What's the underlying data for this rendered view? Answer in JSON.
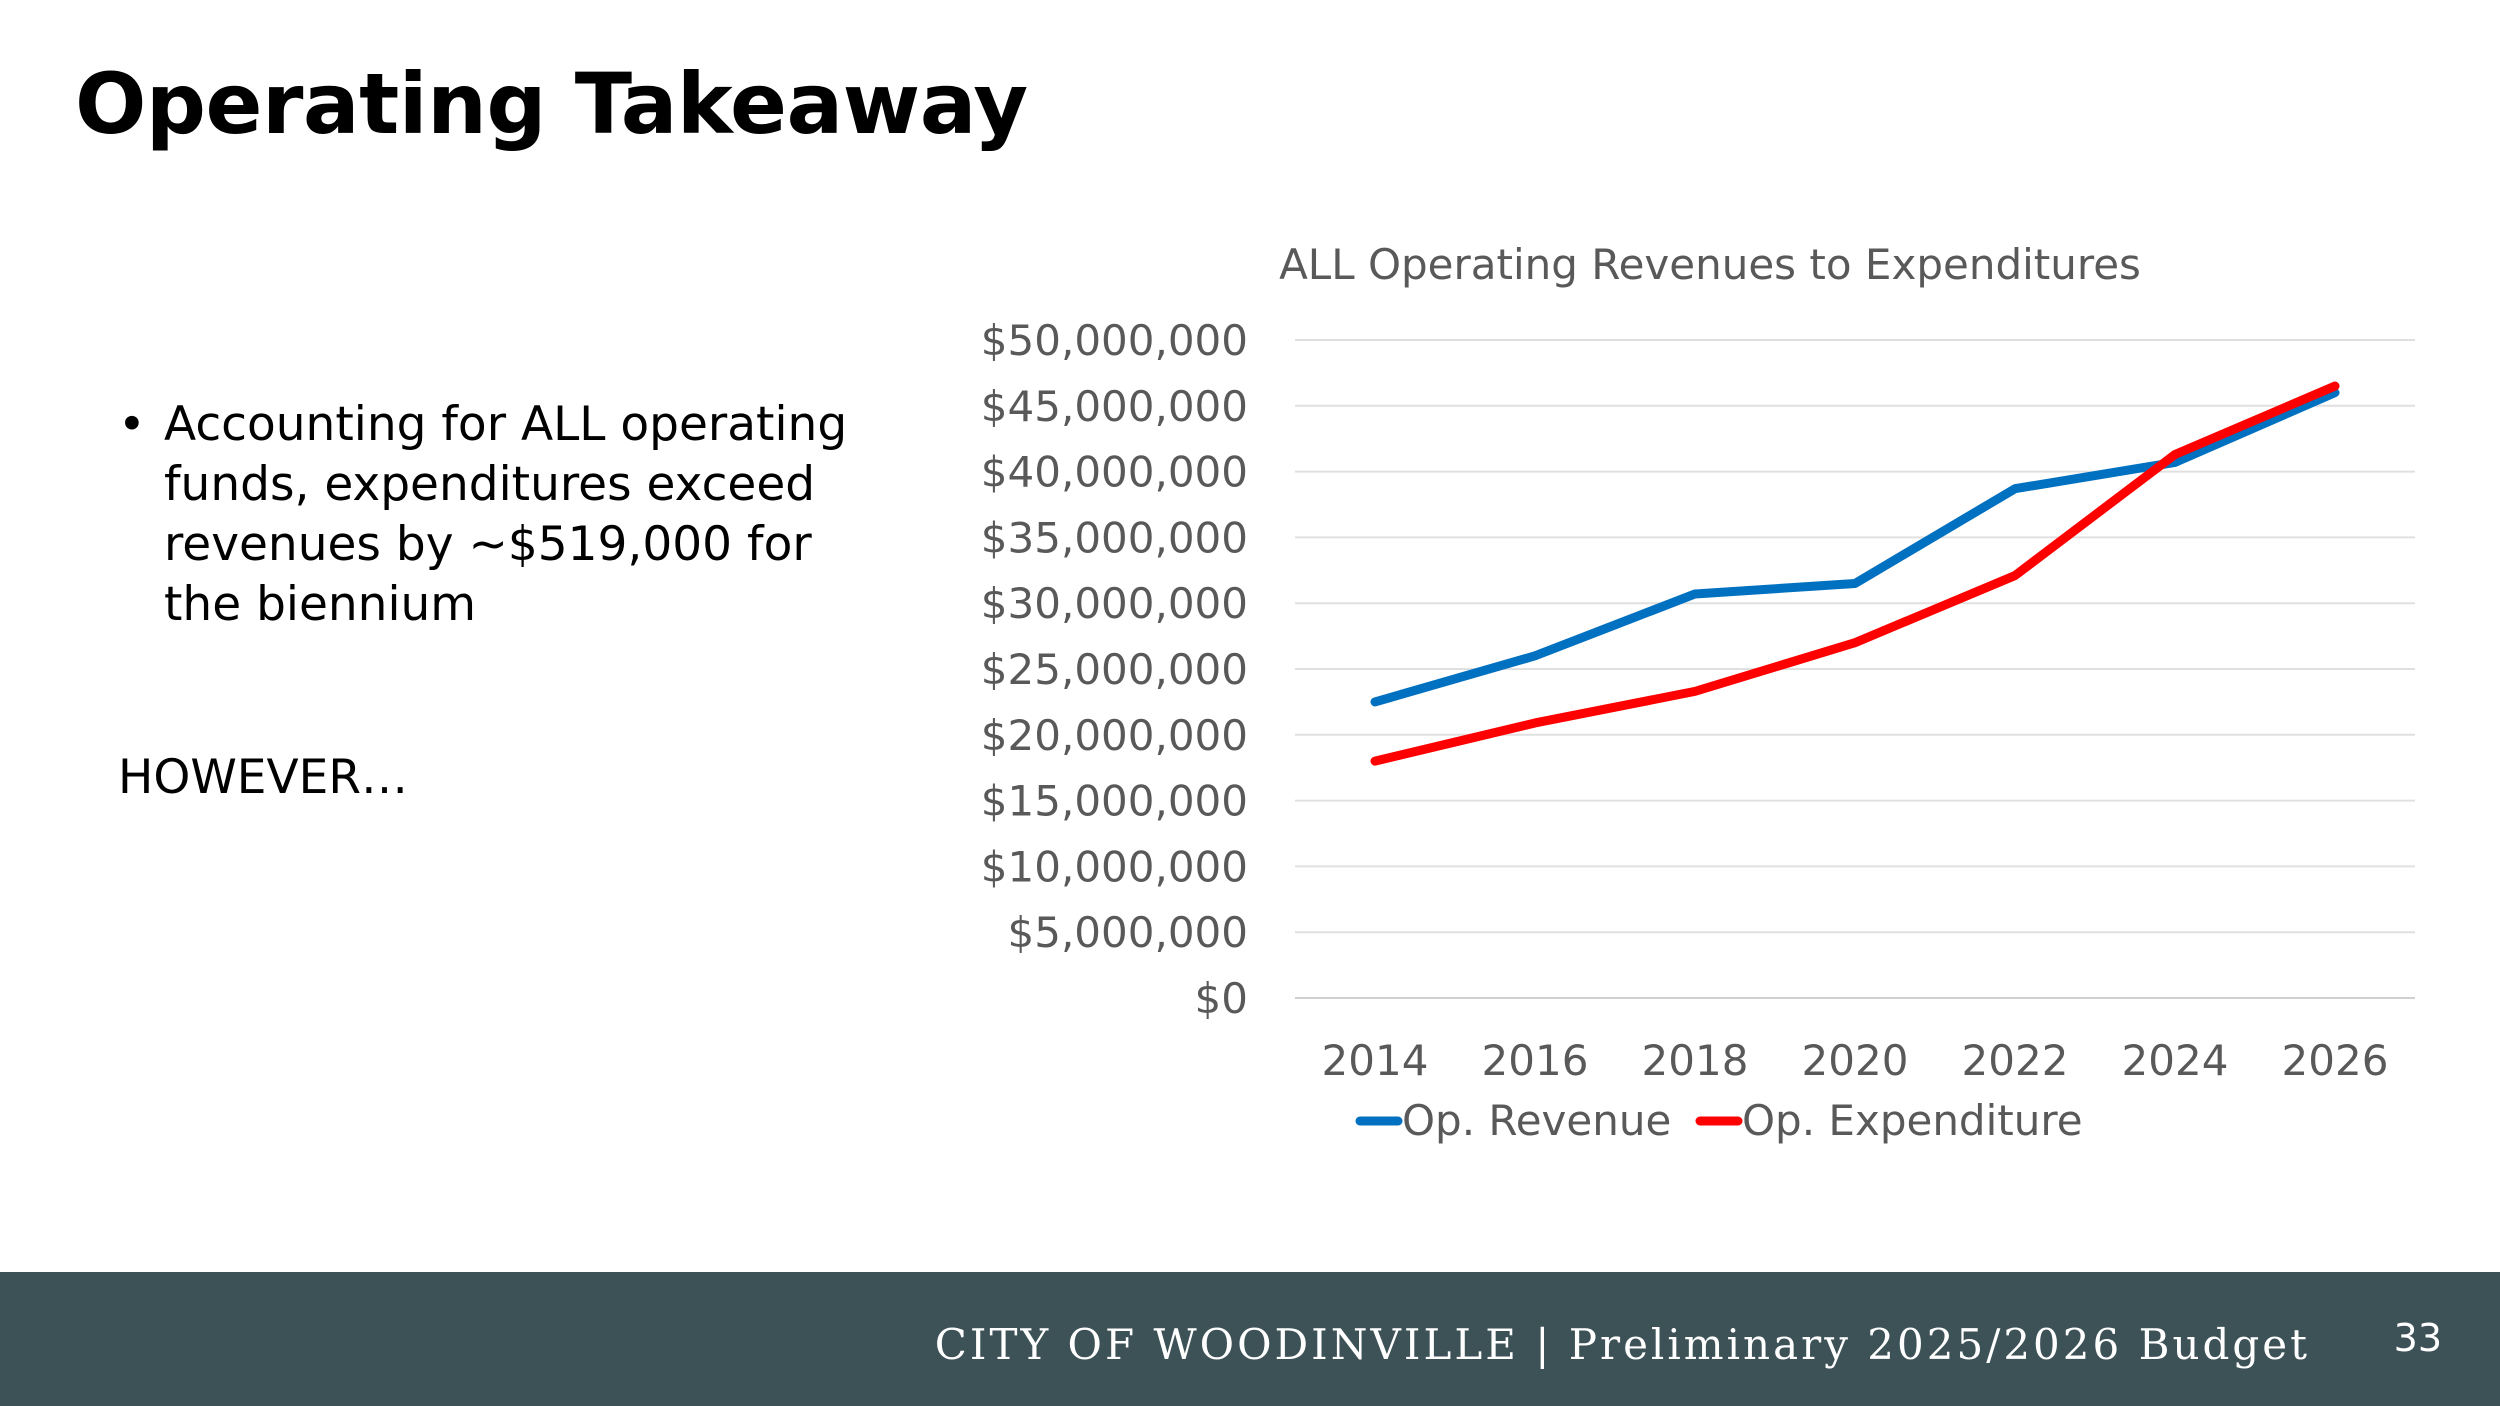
{
  "slide": {
    "title": "Operating Takeaway",
    "bullets": [
      "Accounting for ALL operating funds, expenditures exceed revenues by ~$519,000 for the biennium"
    ],
    "note": "HOWEVER…",
    "footer_text": "CITY OF WOODINVILLE | Preliminary 2025/2026 Budget",
    "page_number": "33"
  },
  "chart_data": {
    "type": "line",
    "title": "ALL Operating Revenues to Expenditures",
    "xlabel": "",
    "ylabel": "",
    "categories": [
      "2014",
      "2016",
      "2018",
      "2020",
      "2022",
      "2024",
      "2026"
    ],
    "y_ticks": [
      "$0",
      "$5,000,000",
      "$10,000,000",
      "$15,000,000",
      "$20,000,000",
      "$25,000,000",
      "$30,000,000",
      "$35,000,000",
      "$40,000,000",
      "$45,000,000",
      "$50,000,000"
    ],
    "ylim": [
      0,
      50000000
    ],
    "grid": true,
    "legend_position": "bottom",
    "series": [
      {
        "name": "Op. Revenue",
        "color": "#0070c0",
        "values": [
          22500000,
          26000000,
          30700000,
          31500000,
          38700000,
          40700000,
          46000000
        ]
      },
      {
        "name": "Op. Expenditure",
        "color": "#ff0000",
        "values": [
          18000000,
          20900000,
          23300000,
          27000000,
          32100000,
          41300000,
          46500000
        ]
      }
    ]
  }
}
